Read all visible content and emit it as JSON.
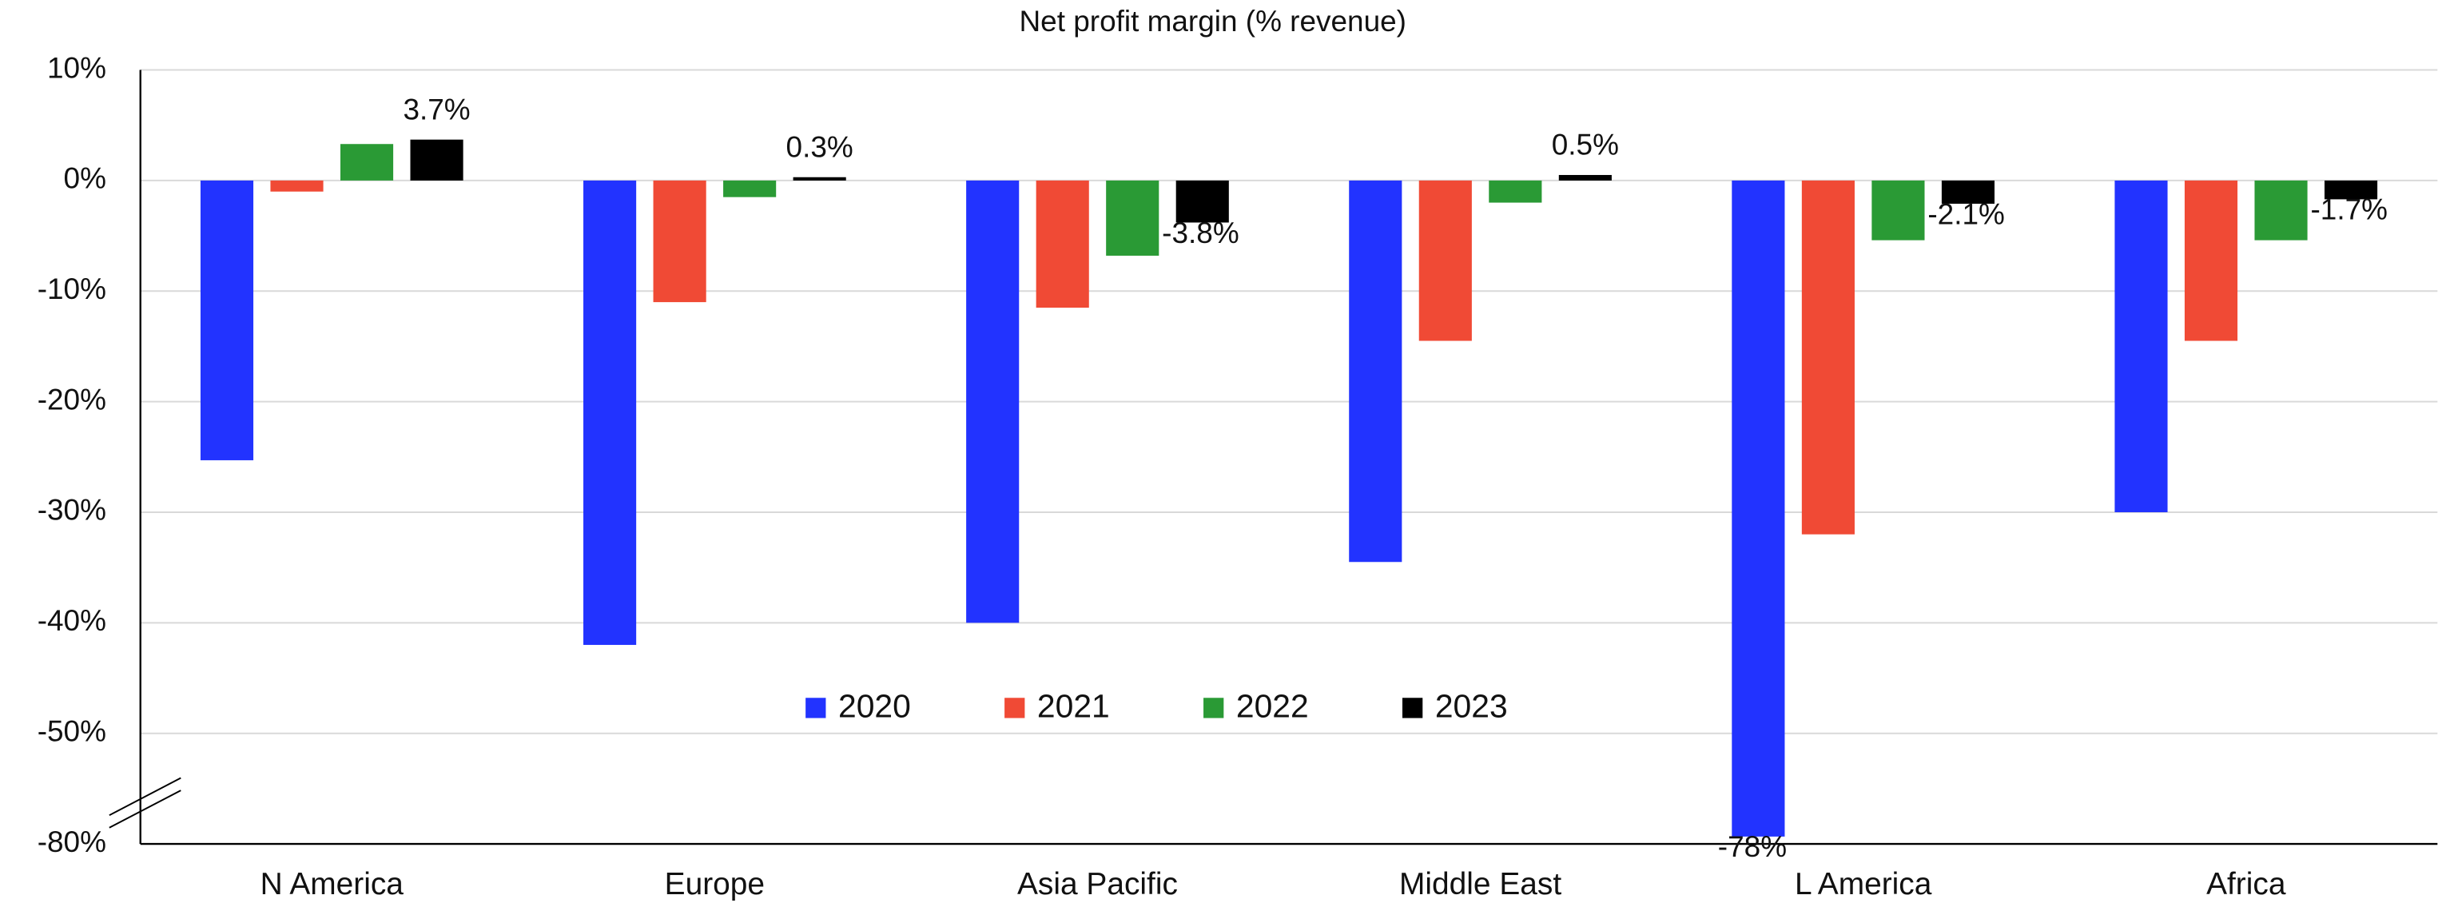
{
  "chart_data": {
    "type": "bar",
    "title": "Net profit margin (% revenue)",
    "categories": [
      "N America",
      "Europe",
      "Asia Pacific",
      "Middle East",
      "L America",
      "Africa"
    ],
    "series": [
      {
        "name": "2020",
        "color": "#2233ff",
        "values": [
          -25.3,
          -42,
          -40,
          -34.5,
          -78,
          -30
        ],
        "value_labels": [
          null,
          null,
          null,
          null,
          "-78%",
          null
        ]
      },
      {
        "name": "2021",
        "color": "#f04a35",
        "values": [
          -1,
          -11,
          -11.5,
          -14.5,
          -32,
          -14.5
        ]
      },
      {
        "name": "2022",
        "color": "#2a9a35",
        "values": [
          3.3,
          -1.5,
          -6.8,
          -2,
          -5.4,
          -5.4
        ]
      },
      {
        "name": "2023",
        "color": "#000000",
        "values": [
          3.7,
          0.3,
          -3.8,
          0.5,
          -2.1,
          -1.7
        ],
        "value_labels": [
          "3.7%",
          "0.3%",
          "-3.8%",
          "0.5%",
          "-2.1%",
          "-1.7%"
        ]
      }
    ],
    "ylim": [
      -80,
      10
    ],
    "yticks": [
      {
        "value": 10,
        "label": "10%"
      },
      {
        "value": 0,
        "label": "0%"
      },
      {
        "value": -10,
        "label": "-10%"
      },
      {
        "value": -20,
        "label": "-20%"
      },
      {
        "value": -30,
        "label": "-30%"
      },
      {
        "value": -40,
        "label": "-40%"
      },
      {
        "value": -50,
        "label": "-50%"
      },
      {
        "value": -80,
        "label": "-80%"
      }
    ],
    "grid": true,
    "legend": "center"
  }
}
